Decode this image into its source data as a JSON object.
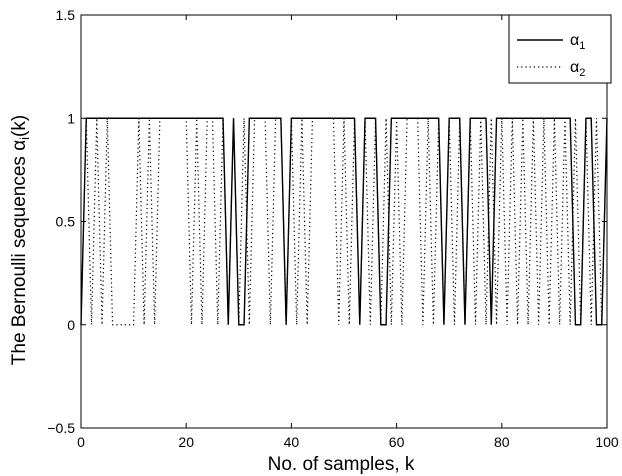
{
  "chart_data": {
    "type": "line",
    "xlabel": "No. of samples, k",
    "ylabel": "The Bernoulli sequences α",
    "ylabel_subscript": "i",
    "ylabel_suffix": "(k)",
    "xlim": [
      0,
      100
    ],
    "ylim": [
      -0.5,
      1.5
    ],
    "xticks": [
      0,
      20,
      40,
      60,
      80,
      100
    ],
    "yticks": [
      -0.5,
      0,
      0.5,
      1,
      1.5
    ],
    "ytick_labels": [
      "−0.5",
      "0",
      "0.5",
      "1",
      "1.5"
    ],
    "grid": false,
    "legend_position": "top-right",
    "series": [
      {
        "name": "α",
        "name_subscript": "1",
        "style": "solid",
        "color": "#000000",
        "x": [
          0,
          1,
          2,
          3,
          4,
          5,
          6,
          7,
          8,
          9,
          10,
          11,
          12,
          13,
          14,
          15,
          16,
          17,
          18,
          19,
          20,
          21,
          22,
          23,
          24,
          25,
          26,
          27,
          28,
          29,
          30,
          31,
          32,
          33,
          34,
          35,
          36,
          37,
          38,
          39,
          40,
          41,
          42,
          43,
          44,
          45,
          46,
          47,
          48,
          49,
          50,
          51,
          52,
          53,
          54,
          55,
          56,
          57,
          58,
          59,
          60,
          61,
          62,
          63,
          64,
          65,
          66,
          67,
          68,
          69,
          70,
          71,
          72,
          73,
          74,
          75,
          76,
          77,
          78,
          79,
          80,
          81,
          82,
          83,
          84,
          85,
          86,
          87,
          88,
          89,
          90,
          91,
          92,
          93,
          94,
          95,
          96,
          97,
          98,
          99,
          100
        ],
        "y": [
          0,
          1,
          1,
          1,
          1,
          1,
          1,
          1,
          1,
          1,
          1,
          1,
          1,
          1,
          1,
          1,
          1,
          1,
          1,
          1,
          1,
          1,
          1,
          1,
          1,
          1,
          1,
          1,
          0,
          1,
          0,
          0,
          1,
          1,
          1,
          1,
          1,
          1,
          1,
          0,
          1,
          1,
          1,
          1,
          1,
          1,
          1,
          1,
          1,
          1,
          1,
          1,
          1,
          0,
          1,
          1,
          1,
          0,
          0,
          1,
          1,
          1,
          1,
          1,
          1,
          1,
          1,
          1,
          1,
          0,
          1,
          1,
          1,
          0,
          1,
          1,
          1,
          1,
          0,
          1,
          1,
          1,
          1,
          1,
          1,
          1,
          1,
          1,
          1,
          1,
          1,
          1,
          1,
          1,
          0,
          0,
          1,
          1,
          0,
          0,
          1
        ]
      },
      {
        "name": "α",
        "name_subscript": "2",
        "style": "dotted",
        "color": "#000000",
        "x": [
          0,
          1,
          2,
          3,
          4,
          5,
          6,
          7,
          8,
          9,
          10,
          11,
          12,
          13,
          14,
          15,
          16,
          17,
          18,
          19,
          20,
          21,
          22,
          23,
          24,
          25,
          26,
          27,
          28,
          29,
          30,
          31,
          32,
          33,
          34,
          35,
          36,
          37,
          38,
          39,
          40,
          41,
          42,
          43,
          44,
          45,
          46,
          47,
          48,
          49,
          50,
          51,
          52,
          53,
          54,
          55,
          56,
          57,
          58,
          59,
          60,
          61,
          62,
          63,
          64,
          65,
          66,
          67,
          68,
          69,
          70,
          71,
          72,
          73,
          74,
          75,
          76,
          77,
          78,
          79,
          80,
          81,
          82,
          83,
          84,
          85,
          86,
          87,
          88,
          89,
          90,
          91,
          92,
          93,
          94,
          95,
          96,
          97,
          98,
          99,
          100
        ],
        "y": [
          0,
          1,
          0,
          1,
          0,
          1,
          0,
          0,
          0,
          0,
          0,
          1,
          0,
          1,
          0,
          1,
          1,
          1,
          1,
          1,
          1,
          0,
          1,
          0,
          1,
          1,
          0,
          1,
          0,
          1,
          0,
          1,
          0,
          1,
          1,
          1,
          0,
          1,
          1,
          0,
          1,
          0,
          1,
          0,
          1,
          1,
          1,
          1,
          1,
          0,
          1,
          0,
          1,
          0,
          1,
          0,
          1,
          0,
          1,
          0,
          1,
          0,
          1,
          1,
          1,
          0,
          1,
          0,
          1,
          0,
          1,
          0,
          1,
          0,
          1,
          0,
          1,
          0,
          1,
          0,
          1,
          0,
          1,
          0,
          1,
          0,
          1,
          0,
          1,
          0,
          1,
          0,
          1,
          0,
          1,
          0,
          1,
          0,
          1,
          0,
          1
        ]
      }
    ]
  }
}
